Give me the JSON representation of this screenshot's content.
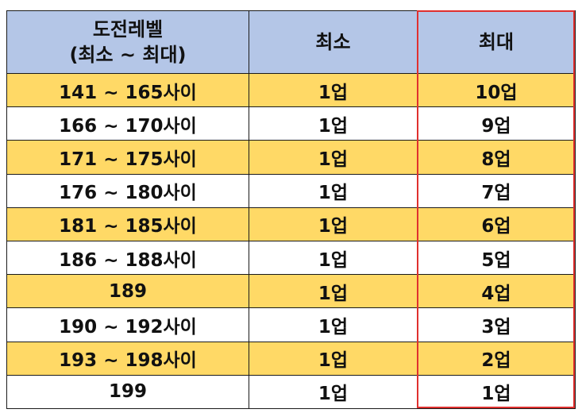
{
  "header": {
    "col1_line1": "도전레벨",
    "col1_line2": "(최소 ~ 최대)",
    "col2": "최소",
    "col3": "최대"
  },
  "rows": [
    {
      "range": "141 ~ 165사이",
      "min": "1업",
      "max": "10업"
    },
    {
      "range": "166 ~ 170사이",
      "min": "1업",
      "max": "9업"
    },
    {
      "range": "171 ~ 175사이",
      "min": "1업",
      "max": "8업"
    },
    {
      "range": "176 ~ 180사이",
      "min": "1업",
      "max": "7업"
    },
    {
      "range": "181 ~ 185사이",
      "min": "1업",
      "max": "6업"
    },
    {
      "range": "186 ~ 188사이",
      "min": "1업",
      "max": "5업"
    },
    {
      "range": "189",
      "min": "1업",
      "max": "4업"
    },
    {
      "range": "190 ~ 192사이",
      "min": "1업",
      "max": "3업"
    },
    {
      "range": "193 ~ 198사이",
      "min": "1업",
      "max": "2업"
    },
    {
      "range": "199",
      "min": "1업",
      "max": "1업"
    }
  ],
  "colors": {
    "header_bg": "#b4c6e7",
    "highlight_row_bg": "#ffd966",
    "plain_row_bg": "#ffffff",
    "max_column_outline": "#e0302f"
  }
}
